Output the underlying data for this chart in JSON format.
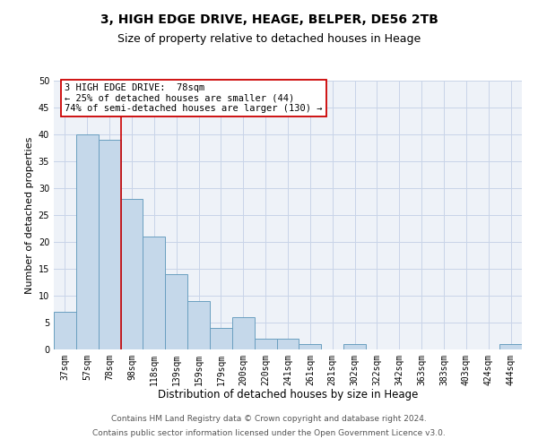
{
  "title1": "3, HIGH EDGE DRIVE, HEAGE, BELPER, DE56 2TB",
  "title2": "Size of property relative to detached houses in Heage",
  "xlabel": "Distribution of detached houses by size in Heage",
  "ylabel": "Number of detached properties",
  "categories": [
    "37sqm",
    "57sqm",
    "78sqm",
    "98sqm",
    "118sqm",
    "139sqm",
    "159sqm",
    "179sqm",
    "200sqm",
    "220sqm",
    "241sqm",
    "261sqm",
    "281sqm",
    "302sqm",
    "322sqm",
    "342sqm",
    "363sqm",
    "383sqm",
    "403sqm",
    "424sqm",
    "444sqm"
  ],
  "values": [
    7,
    40,
    39,
    28,
    21,
    14,
    9,
    4,
    6,
    2,
    2,
    1,
    0,
    1,
    0,
    0,
    0,
    0,
    0,
    0,
    1
  ],
  "bar_color": "#c5d8ea",
  "bar_edge_color": "#6a9fc0",
  "vline_index": 2,
  "vline_color": "#cc0000",
  "annotation_line1": "3 HIGH EDGE DRIVE:  78sqm",
  "annotation_line2": "← 25% of detached houses are smaller (44)",
  "annotation_line3": "74% of semi-detached houses are larger (130) →",
  "annotation_box_color": "#cc0000",
  "ylim": [
    0,
    50
  ],
  "yticks": [
    0,
    5,
    10,
    15,
    20,
    25,
    30,
    35,
    40,
    45,
    50
  ],
  "grid_color": "#c8d4e8",
  "bg_color": "#eef2f8",
  "footer1": "Contains HM Land Registry data © Crown copyright and database right 2024.",
  "footer2": "Contains public sector information licensed under the Open Government Licence v3.0.",
  "title1_fontsize": 10,
  "title2_fontsize": 9,
  "xlabel_fontsize": 8.5,
  "ylabel_fontsize": 8,
  "tick_fontsize": 7,
  "footer_fontsize": 6.5,
  "annot_fontsize": 7.5
}
